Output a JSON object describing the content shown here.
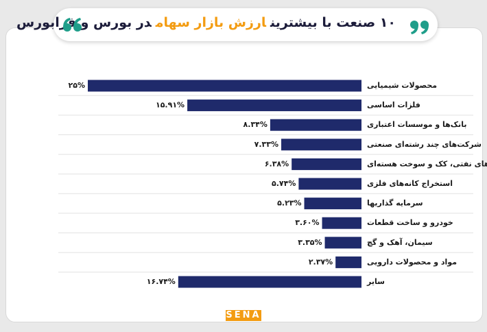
{
  "chart_data": {
    "type": "bar",
    "orientation": "horizontal",
    "title_parts": [
      {
        "text": "۱۰ صنعت با بیشترین",
        "color": "#1c1c3a"
      },
      {
        "text": "ارزش بازار سهام",
        "color": "#f39c12"
      },
      {
        "text": "در بورس و فرابورس",
        "color": "#1c1c3a"
      }
    ],
    "categories": [
      "محصولات شیمیایی",
      "فلزات اساسی",
      "بانک‌ها و موسسات اعتباری",
      "شرکت‌های چند رشته‌ای صنعتی",
      "فراورده‌های نفتی، کک و سوخت هسته‌ای",
      "استخراج کانه‌های فلزی",
      "سرمایه گذاریها",
      "خودرو و ساخت قطعات",
      "سیمان، آهک و گچ",
      "مواد و محصولات دارویی",
      "سایر"
    ],
    "values": [
      25,
      15.91,
      8.34,
      7.33,
      6.38,
      5.74,
      5.23,
      3.6,
      3.35,
      2.37,
      16.74
    ],
    "value_labels": [
      "۲۵%",
      "۱۵.۹۱%",
      "۸.۳۴%",
      "۷.۳۳%",
      "۶.۳۸%",
      "۵.۷۴%",
      "۵.۲۳%",
      "۳.۶۰%",
      "۳.۳۵%",
      "۲.۳۷%",
      "۱۶.۷۴%"
    ],
    "color": "#1f2a6b",
    "xlim": [
      0,
      25
    ],
    "logo": "SENA"
  }
}
